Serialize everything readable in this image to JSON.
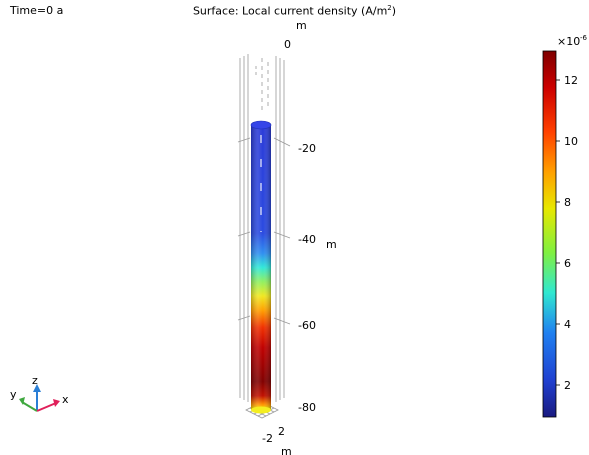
{
  "header": {
    "time_label": "Time=0 a",
    "title_prefix": "Surface: Local current density (A/m",
    "title_exp": "2",
    "title_suffix": ")"
  },
  "axes": {
    "z_unit_top": "m",
    "z_ticks": [
      "0",
      "-20",
      "-40",
      "-60",
      "-80"
    ],
    "z_unit_side": "m",
    "x_tick": "-2",
    "y_tick": "2",
    "x_unit_bottom": "m"
  },
  "triad": {
    "z": "z",
    "y": "y",
    "x": "x"
  },
  "colorbar": {
    "exponent_prefix": "×10",
    "exponent": "-6",
    "ticks": [
      "12",
      "10",
      "8",
      "6",
      "4",
      "2"
    ],
    "colors": [
      "#7f0000",
      "#cc0000",
      "#ff4000",
      "#ffa000",
      "#e8e800",
      "#80f040",
      "#30e8d0",
      "#2080f0",
      "#2040d0",
      "#1a1a80"
    ]
  }
}
